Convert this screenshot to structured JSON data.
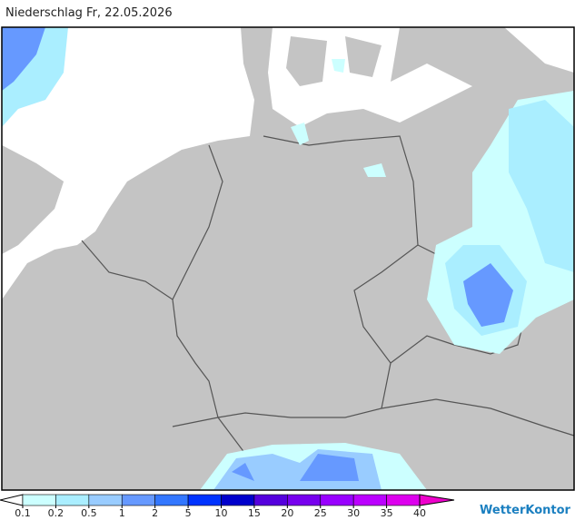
{
  "title": "Niederschlag Fr, 22.05.2026",
  "legend": {
    "ticks": [
      0.1,
      0.2,
      0.5,
      1,
      2,
      5,
      10,
      15,
      20,
      25,
      30,
      35,
      40
    ],
    "colors": [
      "#ffffff",
      "#ccffff",
      "#aaeeff",
      "#99ccff",
      "#6699ff",
      "#3377ff",
      "#0033ff",
      "#0000cc",
      "#5500dd",
      "#7700ee",
      "#9900ff",
      "#bb00ff",
      "#dd00ee",
      "#ee00cc"
    ]
  },
  "brand": "WetterKontor"
}
